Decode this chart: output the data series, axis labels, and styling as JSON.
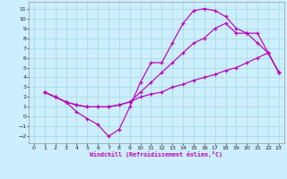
{
  "xlabel": "Windchill (Refroidissement éolien,°C)",
  "bg_color": "#cceeff",
  "grid_color": "#aadddd",
  "line_color": "#bb00bb",
  "xlim": [
    -0.5,
    23.5
  ],
  "ylim": [
    -2.7,
    11.7
  ],
  "xticks": [
    0,
    1,
    2,
    3,
    4,
    5,
    6,
    7,
    8,
    9,
    10,
    11,
    12,
    13,
    14,
    15,
    16,
    17,
    18,
    19,
    20,
    21,
    22,
    23
  ],
  "yticks": [
    -2,
    -1,
    0,
    1,
    2,
    3,
    4,
    5,
    6,
    7,
    8,
    9,
    10,
    11
  ],
  "curve1_x": [
    1,
    2,
    3,
    4,
    5,
    6,
    7,
    8,
    9,
    10,
    11,
    12,
    13,
    14,
    15,
    16,
    17,
    18,
    19,
    20,
    21,
    22,
    23
  ],
  "curve1_y": [
    2.5,
    2.0,
    1.5,
    0.5,
    -0.2,
    -0.8,
    -2.0,
    -1.3,
    1.0,
    3.5,
    5.5,
    5.5,
    7.5,
    9.5,
    10.8,
    11.0,
    10.8,
    10.2,
    9.0,
    8.5,
    8.5,
    6.5,
    4.5
  ],
  "curve2_x": [
    1,
    2,
    3,
    4,
    5,
    6,
    7,
    8,
    9,
    10,
    11,
    12,
    13,
    14,
    15,
    16,
    17,
    18,
    19,
    20,
    21,
    22,
    23
  ],
  "curve2_y": [
    2.5,
    2.0,
    1.5,
    1.2,
    1.0,
    1.0,
    1.0,
    1.2,
    1.5,
    2.0,
    2.3,
    2.5,
    3.0,
    3.3,
    3.7,
    4.0,
    4.3,
    4.7,
    5.0,
    5.5,
    6.0,
    6.5,
    4.5
  ],
  "curve3_x": [
    1,
    2,
    3,
    4,
    5,
    6,
    7,
    8,
    9,
    10,
    11,
    12,
    13,
    14,
    15,
    16,
    17,
    18,
    19,
    20,
    21,
    22,
    23
  ],
  "curve3_y": [
    2.5,
    2.0,
    1.5,
    1.2,
    1.0,
    1.0,
    1.0,
    1.2,
    1.5,
    2.5,
    3.5,
    4.5,
    5.5,
    6.5,
    7.5,
    8.0,
    9.0,
    9.5,
    8.5,
    8.5,
    7.5,
    6.5,
    4.5
  ]
}
